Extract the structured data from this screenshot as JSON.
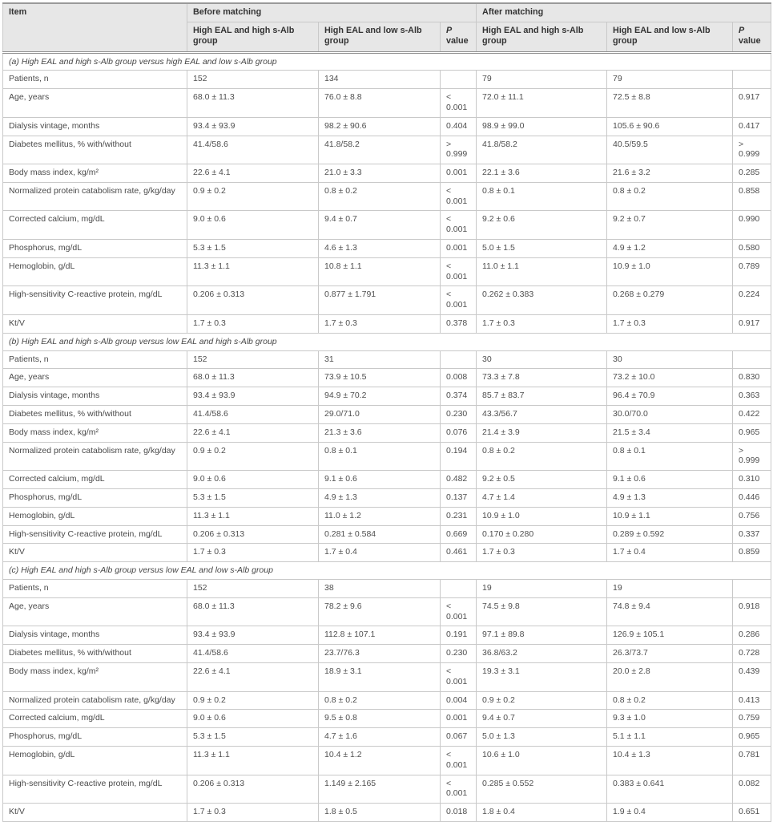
{
  "table": {
    "header": {
      "item": "Item",
      "before": "Before matching",
      "after": "After matching",
      "group1": "High EAL and high s-Alb group",
      "group2": "High EAL and low s-Alb group",
      "p_italic": "P",
      "p_rest": " value"
    },
    "sections": [
      {
        "title": "(a) High EAL and high s-Alb group versus high EAL and low s-Alb group",
        "rows": [
          [
            "Patients, n",
            "152",
            "134",
            "",
            "79",
            "79",
            ""
          ],
          [
            "Age, years",
            "68.0 ± 11.3",
            "76.0 ± 8.8",
            "< 0.001",
            "72.0 ± 11.1",
            "72.5 ± 8.8",
            "0.917"
          ],
          [
            "Dialysis vintage, months",
            "93.4 ± 93.9",
            "98.2 ± 90.6",
            "0.404",
            "98.9 ± 99.0",
            "105.6 ± 90.6",
            "0.417"
          ],
          [
            "Diabetes mellitus, % with/without",
            "41.4/58.6",
            "41.8/58.2",
            "> 0.999",
            "41.8/58.2",
            "40.5/59.5",
            "> 0.999"
          ],
          [
            "Body mass index, kg/m²",
            "22.6 ± 4.1",
            "21.0 ± 3.3",
            "0.001",
            "22.1 ± 3.6",
            "21.6 ± 3.2",
            "0.285"
          ],
          [
            "Normalized protein catabolism rate, g/kg/day",
            "0.9 ± 0.2",
            "0.8 ± 0.2",
            "< 0.001",
            "0.8 ± 0.1",
            "0.8 ± 0.2",
            "0.858"
          ],
          [
            "Corrected calcium, mg/dL",
            "9.0 ± 0.6",
            "9.4 ± 0.7",
            "< 0.001",
            "9.2 ± 0.6",
            "9.2 ± 0.7",
            "0.990"
          ],
          [
            "Phosphorus, mg/dL",
            "5.3 ± 1.5",
            "4.6 ± 1.3",
            "0.001",
            "5.0 ± 1.5",
            "4.9 ± 1.2",
            "0.580"
          ],
          [
            "Hemoglobin, g/dL",
            "11.3 ± 1.1",
            "10.8 ± 1.1",
            "< 0.001",
            "11.0 ± 1.1",
            "10.9 ± 1.0",
            "0.789"
          ],
          [
            "High-sensitivity C-reactive protein, mg/dL",
            "0.206 ± 0.313",
            "0.877 ± 1.791",
            "< 0.001",
            "0.262 ± 0.383",
            "0.268 ± 0.279",
            "0.224"
          ],
          [
            "Kt/V",
            "1.7 ± 0.3",
            "1.7 ± 0.3",
            "0.378",
            "1.7 ± 0.3",
            "1.7 ± 0.3",
            "0.917"
          ]
        ]
      },
      {
        "title": "(b) High EAL and high s-Alb group versus low EAL and high s-Alb group",
        "rows": [
          [
            "Patients, n",
            "152",
            "31",
            "",
            "30",
            "30",
            ""
          ],
          [
            "Age, years",
            "68.0 ± 11.3",
            "73.9 ± 10.5",
            "0.008",
            "73.3 ± 7.8",
            "73.2 ± 10.0",
            "0.830"
          ],
          [
            "Dialysis vintage, months",
            "93.4 ± 93.9",
            "94.9 ± 70.2",
            "0.374",
            "85.7 ± 83.7",
            "96.4 ± 70.9",
            "0.363"
          ],
          [
            "Diabetes mellitus, % with/without",
            "41.4/58.6",
            "29.0/71.0",
            "0.230",
            "43.3/56.7",
            "30.0/70.0",
            "0.422"
          ],
          [
            "Body mass index, kg/m²",
            "22.6 ± 4.1",
            "21.3 ± 3.6",
            "0.076",
            "21.4 ± 3.9",
            "21.5 ± 3.4",
            "0.965"
          ],
          [
            "Normalized protein catabolism rate, g/kg/day",
            "0.9 ± 0.2",
            "0.8 ± 0.1",
            "0.194",
            "0.8 ± 0.2",
            "0.8 ± 0.1",
            "> 0.999"
          ],
          [
            "Corrected calcium, mg/dL",
            "9.0 ± 0.6",
            "9.1 ± 0.6",
            "0.482",
            "9.2 ± 0.5",
            "9.1 ± 0.6",
            "0.310"
          ],
          [
            "Phosphorus, mg/dL",
            "5.3 ± 1.5",
            "4.9 ± 1.3",
            "0.137",
            "4.7 ± 1.4",
            "4.9 ± 1.3",
            "0.446"
          ],
          [
            "Hemoglobin, g/dL",
            "11.3 ± 1.1",
            "11.0 ± 1.2",
            "0.231",
            "10.9 ± 1.0",
            "10.9 ± 1.1",
            "0.756"
          ],
          [
            "High-sensitivity C-reactive protein, mg/dL",
            "0.206 ± 0.313",
            "0.281 ± 0.584",
            "0.669",
            "0.170 ± 0.280",
            "0.289 ± 0.592",
            "0.337"
          ],
          [
            "Kt/V",
            "1.7 ± 0.3",
            "1.7 ± 0.4",
            "0.461",
            "1.7 ± 0.3",
            "1.7 ± 0.4",
            "0.859"
          ]
        ]
      },
      {
        "title": "(c) High EAL and high s-Alb group versus low EAL and low s-Alb group",
        "rows": [
          [
            "Patients, n",
            "152",
            "38",
            "",
            "19",
            "19",
            ""
          ],
          [
            "Age, years",
            "68.0 ± 11.3",
            "78.2 ± 9.6",
            "< 0.001",
            "74.5 ± 9.8",
            "74.8 ± 9.4",
            "0.918"
          ],
          [
            "Dialysis vintage, months",
            "93.4 ± 93.9",
            "112.8 ± 107.1",
            "0.191",
            "97.1 ± 89.8",
            "126.9 ± 105.1",
            "0.286"
          ],
          [
            "Diabetes mellitus, % with/without",
            "41.4/58.6",
            "23.7/76.3",
            "0.230",
            "36.8/63.2",
            "26.3/73.7",
            "0.728"
          ],
          [
            "Body mass index, kg/m²",
            "22.6 ± 4.1",
            "18.9 ± 3.1",
            "< 0.001",
            "19.3 ± 3.1",
            "20.0 ± 2.8",
            "0.439"
          ],
          [
            "Normalized protein catabolism rate, g/kg/day",
            "0.9 ± 0.2",
            "0.8 ± 0.2",
            "0.004",
            "0.9 ± 0.2",
            "0.8 ± 0.2",
            "0.413"
          ],
          [
            "Corrected calcium, mg/dL",
            "9.0 ± 0.6",
            "9.5 ± 0.8",
            "0.001",
            "9.4 ± 0.7",
            "9.3 ± 1.0",
            "0.759"
          ],
          [
            "Phosphorus, mg/dL",
            "5.3 ± 1.5",
            "4.7 ± 1.6",
            "0.067",
            "5.0 ± 1.3",
            "5.1 ± 1.1",
            "0.965"
          ],
          [
            "Hemoglobin, g/dL",
            "11.3 ± 1.1",
            "10.4 ± 1.2",
            "< 0.001",
            "10.6 ± 1.0",
            "10.4 ± 1.3",
            "0.781"
          ],
          [
            "High-sensitivity C-reactive protein, mg/dL",
            "0.206 ± 0.313",
            "1.149 ± 2.165",
            "< 0.001",
            "0.285 ± 0.552",
            "0.383 ± 0.641",
            "0.082"
          ],
          [
            "Kt/V",
            "1.7 ± 0.3",
            "1.8 ± 0.5",
            "0.018",
            "1.8 ± 0.4",
            "1.9 ± 0.4",
            "0.651"
          ]
        ]
      }
    ],
    "colors": {
      "header_bg": "#e7e7e7",
      "border": "#c9c9c9",
      "thick_border": "#8f8f8f",
      "text": "#4a4a4a"
    }
  }
}
